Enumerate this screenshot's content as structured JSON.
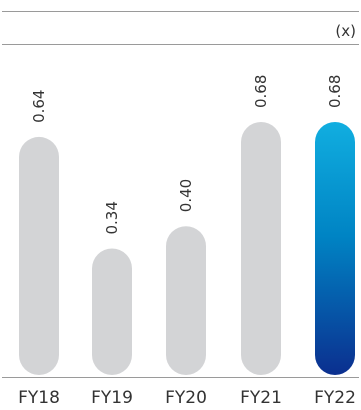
{
  "chart_data": {
    "type": "bar",
    "unit_label": "(x)",
    "categories": [
      "FY18",
      "FY19",
      "FY20",
      "FY21",
      "FY22"
    ],
    "values": [
      0.64,
      0.34,
      0.4,
      0.68,
      0.68
    ],
    "value_labels": [
      "0.64",
      "0.34",
      "0.40",
      "0.68",
      "0.68"
    ],
    "highlight_index": 4,
    "colors": {
      "bar": "#d3d4d6",
      "highlight_top": "#11aee0",
      "highlight_mid": "#0084c4",
      "highlight_bottom": "#0b2f8f",
      "rule": "#9a9a9a",
      "text": "#333333"
    },
    "ylim": [
      0,
      0.75
    ],
    "title": "",
    "xlabel": "",
    "ylabel": ""
  }
}
